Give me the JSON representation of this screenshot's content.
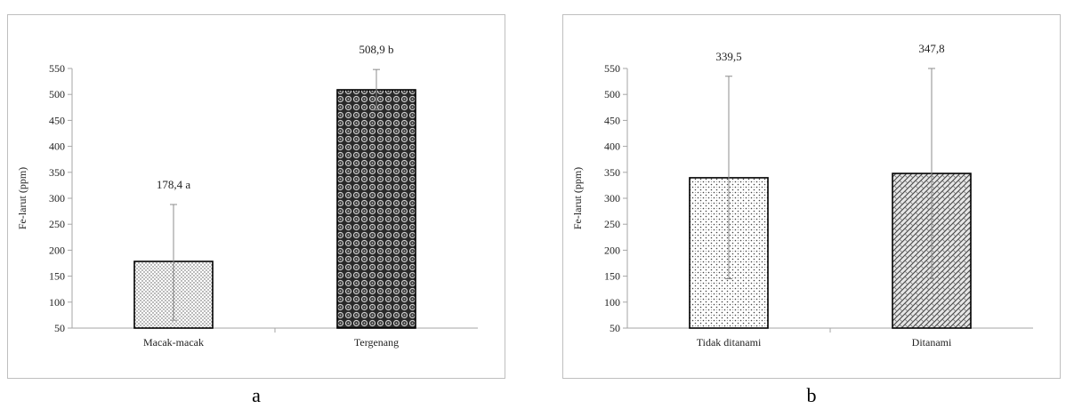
{
  "chart_data": [
    {
      "type": "bar",
      "panel_label": "a",
      "ylabel": "Fe-larut (ppm)",
      "ylim": [
        50,
        550
      ],
      "yticks": [
        50,
        100,
        150,
        200,
        250,
        300,
        350,
        400,
        450,
        500,
        550
      ],
      "grid": false,
      "categories": [
        "Macak-macak",
        "Tergenang"
      ],
      "values": [
        178.4,
        508.9
      ],
      "error_low": [
        65,
        470
      ],
      "error_high": [
        288,
        548
      ],
      "data_labels": [
        "178,4 a",
        "508,9 b"
      ],
      "bar_patterns": [
        "fine-dots",
        "dark-circles"
      ]
    },
    {
      "type": "bar",
      "panel_label": "b",
      "ylabel": "Fe-larut (ppm)",
      "ylim": [
        50,
        550
      ],
      "yticks": [
        50,
        100,
        150,
        200,
        250,
        300,
        350,
        400,
        450,
        500,
        550
      ],
      "grid": false,
      "categories": [
        "Tidak ditanami",
        "Ditanami"
      ],
      "values": [
        339.5,
        347.8
      ],
      "error_low": [
        145,
        145
      ],
      "error_high": [
        535,
        550
      ],
      "data_labels": [
        "339,5",
        "347,8"
      ],
      "bar_patterns": [
        "sparse-dots",
        "weave"
      ]
    }
  ]
}
